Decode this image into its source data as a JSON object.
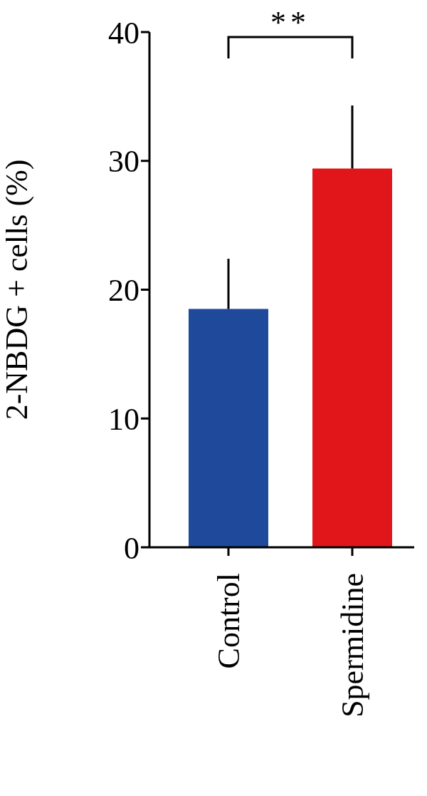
{
  "chart_data": {
    "type": "bar",
    "ylabel": "2-NBDG + cells (%)",
    "categories": [
      "Control",
      "Spermidine"
    ],
    "values": [
      18.5,
      29.4
    ],
    "colors": [
      "#1f4a9c",
      "#e0161b"
    ],
    "errors": [
      [
        18.5,
        22.4
      ],
      [
        29.4,
        34.3
      ]
    ],
    "ylim": [
      0,
      40
    ],
    "yticks": [
      0,
      10,
      20,
      30,
      40
    ],
    "grid": false,
    "legend": false,
    "annotations": [
      "**"
    ]
  }
}
